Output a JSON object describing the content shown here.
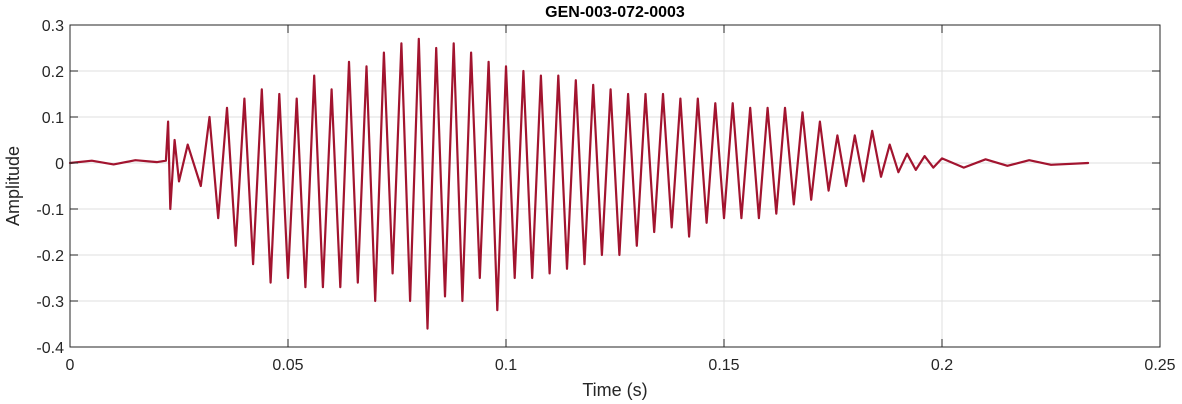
{
  "chart_data": {
    "type": "line",
    "title": "GEN-003-072-0003",
    "xlabel": "Time (s)",
    "ylabel": "Amplitude",
    "xlim": [
      0,
      0.25
    ],
    "ylim": [
      -0.4,
      0.3
    ],
    "xticks": [
      0,
      0.05,
      0.1,
      0.15,
      0.2,
      0.25
    ],
    "xtick_labels": [
      "0",
      "0.05",
      "0.1",
      "0.15",
      "0.2",
      "0.25"
    ],
    "yticks": [
      -0.4,
      -0.3,
      -0.2,
      -0.1,
      0,
      0.1,
      0.2,
      0.3
    ],
    "ytick_labels": [
      "-0.4",
      "-0.3",
      "-0.2",
      "-0.1",
      "0",
      "0.1",
      "0.2",
      "0.3"
    ],
    "grid": true,
    "line_color": "#A2142F",
    "series": [
      {
        "x": [
          0,
          0.005,
          0.01,
          0.015,
          0.02,
          0.022,
          0.0225,
          0.023,
          0.024,
          0.025,
          0.027,
          0.03,
          0.032,
          0.034,
          0.036,
          0.038,
          0.04,
          0.042,
          0.044,
          0.046,
          0.048,
          0.05,
          0.052,
          0.054,
          0.056,
          0.058,
          0.06,
          0.062,
          0.064,
          0.066,
          0.068,
          0.07,
          0.072,
          0.074,
          0.076,
          0.078,
          0.08,
          0.082,
          0.084,
          0.086,
          0.088,
          0.09,
          0.092,
          0.094,
          0.096,
          0.098,
          0.1,
          0.102,
          0.104,
          0.106,
          0.108,
          0.11,
          0.112,
          0.114,
          0.116,
          0.118,
          0.12,
          0.122,
          0.124,
          0.126,
          0.128,
          0.13,
          0.132,
          0.134,
          0.136,
          0.138,
          0.14,
          0.142,
          0.144,
          0.146,
          0.148,
          0.15,
          0.152,
          0.154,
          0.156,
          0.158,
          0.16,
          0.162,
          0.164,
          0.166,
          0.168,
          0.17,
          0.172,
          0.174,
          0.176,
          0.178,
          0.18,
          0.182,
          0.184,
          0.186,
          0.188,
          0.19,
          0.192,
          0.194,
          0.196,
          0.198,
          0.2,
          0.205,
          0.21,
          0.215,
          0.22,
          0.225,
          0.2335
        ],
        "y": [
          0,
          0.005,
          -0.003,
          0.006,
          0.002,
          0.005,
          0.09,
          -0.1,
          0.05,
          -0.04,
          0.04,
          -0.05,
          0.1,
          -0.12,
          0.12,
          -0.18,
          0.14,
          -0.22,
          0.16,
          -0.26,
          0.15,
          -0.25,
          0.14,
          -0.27,
          0.19,
          -0.27,
          0.16,
          -0.27,
          0.22,
          -0.26,
          0.21,
          -0.3,
          0.24,
          -0.24,
          0.26,
          -0.3,
          0.27,
          -0.36,
          0.25,
          -0.29,
          0.26,
          -0.3,
          0.24,
          -0.25,
          0.22,
          -0.32,
          0.21,
          -0.25,
          0.2,
          -0.25,
          0.19,
          -0.24,
          0.19,
          -0.23,
          0.18,
          -0.22,
          0.17,
          -0.2,
          0.16,
          -0.2,
          0.15,
          -0.18,
          0.15,
          -0.15,
          0.15,
          -0.14,
          0.14,
          -0.16,
          0.14,
          -0.13,
          0.13,
          -0.12,
          0.13,
          -0.12,
          0.12,
          -0.12,
          0.12,
          -0.11,
          0.12,
          -0.09,
          0.11,
          -0.08,
          0.09,
          -0.06,
          0.06,
          -0.05,
          0.06,
          -0.04,
          0.07,
          -0.03,
          0.04,
          -0.02,
          0.02,
          -0.015,
          0.015,
          -0.01,
          0.01,
          -0.01,
          0.008,
          -0.006,
          0.006,
          -0.004,
          0
        ]
      }
    ]
  }
}
